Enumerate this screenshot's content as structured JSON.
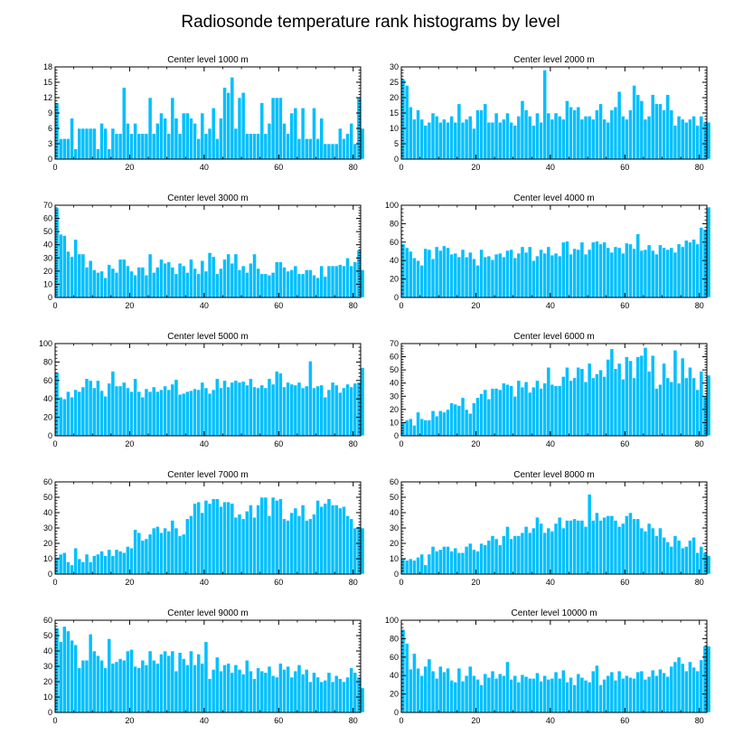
{
  "title": "Radiosonde temperature rank histograms by level",
  "style": {
    "bar_color": "#00bfff",
    "bar_stroke": "#ffffff",
    "axis_color": "#000000",
    "background": "#ffffff"
  },
  "chart_data": [
    {
      "type": "bar",
      "title": "Center level 1000 m",
      "xlim": [
        0,
        82
      ],
      "ylim": [
        0,
        18
      ],
      "xticks": [
        0,
        20,
        40,
        60,
        80
      ],
      "yticks": [
        0,
        3,
        6,
        9,
        12,
        15,
        18
      ],
      "values": [
        11,
        4,
        4,
        4,
        8,
        2,
        6,
        6,
        6,
        6,
        6,
        2,
        7,
        6,
        2,
        6,
        5,
        5,
        14,
        7,
        5,
        7,
        5,
        5,
        5,
        12,
        5,
        7,
        9,
        8,
        5,
        12,
        8,
        5,
        9,
        9,
        8,
        7,
        4,
        9,
        5,
        6,
        10,
        4,
        8,
        14,
        13,
        16,
        6,
        12,
        13,
        5,
        5,
        5,
        5,
        11,
        5,
        7,
        12,
        12,
        12,
        7,
        5,
        9,
        10,
        4,
        10,
        4,
        4,
        10,
        4,
        8,
        3,
        3,
        3,
        3,
        6,
        4,
        5,
        7,
        3,
        12,
        6
      ]
    },
    {
      "type": "bar",
      "title": "Center level 2000 m",
      "xlim": [
        0,
        82
      ],
      "ylim": [
        0,
        30
      ],
      "xticks": [
        0,
        20,
        40,
        60,
        80
      ],
      "yticks": [
        0,
        5,
        10,
        15,
        20,
        25,
        30
      ],
      "values": [
        26,
        24,
        17,
        13,
        16,
        13,
        11,
        12,
        15,
        14,
        12,
        13,
        12,
        14,
        12,
        18,
        12,
        13,
        14,
        10,
        16,
        16,
        18,
        12,
        12,
        15,
        12,
        13,
        15,
        12,
        11,
        14,
        19,
        16,
        14,
        11,
        15,
        12,
        29,
        15,
        13,
        15,
        14,
        13,
        19,
        17,
        16,
        17,
        13,
        14,
        14,
        13,
        16,
        18,
        13,
        12,
        16,
        17,
        22,
        14,
        13,
        16,
        24,
        21,
        19,
        13,
        14,
        21,
        18,
        18,
        16,
        21,
        16,
        11,
        14,
        13,
        12,
        13,
        14,
        11,
        14,
        12,
        12
      ]
    },
    {
      "type": "bar",
      "title": "Center level 3000 m",
      "xlim": [
        0,
        82
      ],
      "ylim": [
        0,
        70
      ],
      "xticks": [
        0,
        20,
        40,
        60,
        80
      ],
      "yticks": [
        0,
        10,
        20,
        30,
        40,
        50,
        60,
        70
      ],
      "values": [
        68,
        48,
        47,
        35,
        31,
        44,
        33,
        33,
        23,
        28,
        21,
        19,
        20,
        15,
        25,
        22,
        19,
        29,
        29,
        24,
        20,
        17,
        23,
        23,
        17,
        33,
        19,
        23,
        29,
        26,
        27,
        23,
        18,
        26,
        24,
        19,
        29,
        22,
        18,
        28,
        20,
        34,
        31,
        18,
        22,
        29,
        33,
        26,
        33,
        21,
        24,
        19,
        26,
        33,
        22,
        18,
        18,
        17,
        19,
        27,
        27,
        23,
        20,
        21,
        24,
        18,
        18,
        21,
        21,
        17,
        15,
        24,
        16,
        24,
        24,
        24,
        25,
        24,
        30,
        24,
        27,
        36,
        21
      ]
    },
    {
      "type": "bar",
      "title": "Center level 4000 m",
      "xlim": [
        0,
        82
      ],
      "ylim": [
        0,
        100
      ],
      "xticks": [
        0,
        20,
        40,
        60,
        80
      ],
      "yticks": [
        0,
        20,
        40,
        60,
        80,
        100
      ],
      "values": [
        58,
        54,
        50,
        43,
        40,
        35,
        53,
        52,
        42,
        55,
        51,
        56,
        54,
        47,
        48,
        44,
        52,
        44,
        49,
        42,
        35,
        52,
        44,
        45,
        41,
        47,
        48,
        44,
        51,
        52,
        43,
        48,
        55,
        49,
        55,
        40,
        45,
        52,
        48,
        55,
        46,
        48,
        45,
        60,
        61,
        47,
        53,
        52,
        60,
        47,
        52,
        60,
        61,
        58,
        60,
        54,
        49,
        55,
        54,
        48,
        59,
        58,
        53,
        69,
        51,
        52,
        57,
        51,
        47,
        57,
        54,
        52,
        54,
        49,
        58,
        55,
        62,
        60,
        63,
        58,
        76,
        74,
        98
      ]
    },
    {
      "type": "bar",
      "title": "Center level 5000 m",
      "xlim": [
        0,
        82
      ],
      "ylim": [
        0,
        100
      ],
      "xticks": [
        0,
        20,
        40,
        60,
        80
      ],
      "yticks": [
        0,
        20,
        40,
        60,
        80,
        100
      ],
      "values": [
        69,
        42,
        40,
        48,
        42,
        50,
        48,
        53,
        62,
        60,
        52,
        60,
        49,
        43,
        57,
        70,
        54,
        54,
        58,
        52,
        48,
        62,
        48,
        42,
        51,
        48,
        53,
        48,
        50,
        54,
        50,
        56,
        61,
        45,
        46,
        48,
        49,
        51,
        50,
        58,
        52,
        46,
        50,
        62,
        52,
        60,
        53,
        58,
        60,
        58,
        59,
        55,
        62,
        53,
        52,
        55,
        52,
        62,
        56,
        70,
        68,
        53,
        58,
        56,
        55,
        58,
        52,
        54,
        81,
        52,
        54,
        55,
        42,
        50,
        58,
        55,
        47,
        52,
        56,
        53,
        57,
        58,
        74
      ]
    },
    {
      "type": "bar",
      "title": "Center level 6000 m",
      "xlim": [
        0,
        82
      ],
      "ylim": [
        0,
        70
      ],
      "xticks": [
        0,
        20,
        40,
        60,
        80
      ],
      "yticks": [
        0,
        10,
        20,
        30,
        40,
        50,
        60,
        70
      ],
      "values": [
        10,
        12,
        13,
        8,
        18,
        13,
        12,
        12,
        19,
        15,
        19,
        18,
        20,
        25,
        24,
        23,
        29,
        20,
        17,
        25,
        29,
        32,
        35,
        28,
        36,
        36,
        35,
        40,
        39,
        38,
        30,
        42,
        37,
        41,
        33,
        37,
        42,
        36,
        40,
        52,
        39,
        38,
        38,
        45,
        52,
        42,
        44,
        52,
        51,
        41,
        55,
        44,
        47,
        50,
        45,
        58,
        66,
        51,
        55,
        43,
        60,
        57,
        44,
        60,
        61,
        67,
        49,
        61,
        36,
        39,
        55,
        44,
        41,
        65,
        40,
        59,
        44,
        52,
        44,
        35,
        49,
        30,
        46
      ]
    },
    {
      "type": "bar",
      "title": "Center level 7000 m",
      "xlim": [
        0,
        82
      ],
      "ylim": [
        0,
        60
      ],
      "xticks": [
        0,
        20,
        40,
        60,
        80
      ],
      "yticks": [
        0,
        10,
        20,
        30,
        40,
        50,
        60
      ],
      "values": [
        11,
        13,
        14,
        8,
        6,
        17,
        10,
        8,
        13,
        8,
        12,
        13,
        15,
        12,
        16,
        12,
        16,
        15,
        14,
        18,
        17,
        29,
        27,
        22,
        23,
        26,
        30,
        31,
        27,
        30,
        28,
        35,
        30,
        25,
        26,
        36,
        38,
        46,
        47,
        40,
        48,
        46,
        49,
        49,
        44,
        47,
        47,
        46,
        37,
        39,
        36,
        41,
        45,
        37,
        45,
        50,
        50,
        38,
        50,
        48,
        49,
        36,
        35,
        40,
        43,
        38,
        45,
        35,
        36,
        39,
        48,
        44,
        46,
        49,
        45,
        45,
        43,
        44,
        38,
        36,
        30,
        31,
        30
      ]
    },
    {
      "type": "bar",
      "title": "Center level 8000 m",
      "xlim": [
        0,
        82
      ],
      "ylim": [
        0,
        60
      ],
      "xticks": [
        0,
        20,
        40,
        60,
        80
      ],
      "yticks": [
        0,
        10,
        20,
        30,
        40,
        50,
        60
      ],
      "values": [
        10,
        9,
        10,
        9,
        11,
        13,
        6,
        13,
        18,
        15,
        16,
        18,
        18,
        15,
        17,
        14,
        14,
        18,
        20,
        16,
        15,
        20,
        19,
        22,
        25,
        23,
        19,
        25,
        31,
        23,
        25,
        25,
        27,
        31,
        27,
        30,
        37,
        33,
        27,
        30,
        28,
        33,
        37,
        30,
        35,
        35,
        36,
        35,
        35,
        31,
        52,
        35,
        40,
        35,
        37,
        38,
        38,
        35,
        31,
        33,
        38,
        40,
        36,
        36,
        30,
        28,
        33,
        30,
        25,
        30,
        24,
        21,
        18,
        25,
        22,
        17,
        18,
        22,
        24,
        14,
        18,
        14,
        12
      ]
    },
    {
      "type": "bar",
      "title": "Center level 9000 m",
      "xlim": [
        0,
        82
      ],
      "ylim": [
        0,
        60
      ],
      "xticks": [
        0,
        20,
        40,
        60,
        80
      ],
      "yticks": [
        0,
        10,
        20,
        30,
        40,
        50,
        60
      ],
      "values": [
        55,
        46,
        56,
        53,
        47,
        44,
        29,
        34,
        34,
        51,
        40,
        37,
        34,
        29,
        48,
        32,
        33,
        35,
        34,
        40,
        41,
        30,
        29,
        34,
        31,
        40,
        34,
        32,
        38,
        40,
        37,
        40,
        27,
        39,
        35,
        31,
        40,
        31,
        38,
        32,
        46,
        22,
        28,
        36,
        27,
        31,
        32,
        26,
        31,
        28,
        25,
        34,
        27,
        22,
        29,
        27,
        26,
        30,
        24,
        23,
        32,
        28,
        30,
        23,
        27,
        31,
        25,
        28,
        20,
        26,
        23,
        20,
        21,
        26,
        20,
        24,
        22,
        20,
        23,
        29,
        26,
        23,
        16
      ]
    },
    {
      "type": "bar",
      "title": "Center level 10000 m",
      "xlim": [
        0,
        82
      ],
      "ylim": [
        0,
        100
      ],
      "xticks": [
        0,
        20,
        40,
        60,
        80
      ],
      "yticks": [
        0,
        20,
        40,
        60,
        80,
        100
      ],
      "values": [
        90,
        75,
        47,
        64,
        48,
        40,
        50,
        58,
        45,
        37,
        50,
        44,
        48,
        35,
        33,
        48,
        34,
        40,
        50,
        40,
        36,
        30,
        42,
        38,
        45,
        37,
        42,
        40,
        55,
        36,
        40,
        33,
        41,
        39,
        37,
        37,
        43,
        34,
        40,
        36,
        37,
        44,
        37,
        46,
        33,
        38,
        30,
        42,
        38,
        35,
        33,
        45,
        51,
        30,
        36,
        40,
        44,
        35,
        45,
        37,
        40,
        38,
        37,
        44,
        45,
        36,
        39,
        46,
        40,
        47,
        43,
        39,
        50,
        55,
        60,
        53,
        45,
        55,
        49,
        45,
        57,
        72,
        72
      ]
    }
  ]
}
